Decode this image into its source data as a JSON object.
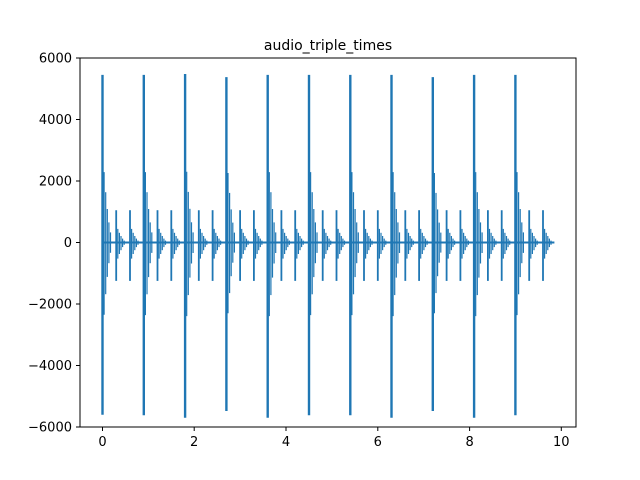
{
  "chart_data": {
    "type": "line",
    "title": "audio_triple_times",
    "xlabel": "",
    "ylabel": "",
    "xlim": [
      -0.49,
      10.32
    ],
    "ylim": [
      -6000,
      6000
    ],
    "xticks": [
      0,
      2,
      4,
      6,
      8,
      10
    ],
    "yticks": [
      -6000,
      -4000,
      -2000,
      0,
      2000,
      4000,
      6000
    ],
    "x_tick_labels": [
      "0",
      "2",
      "4",
      "6",
      "8",
      "10"
    ],
    "y_tick_labels": [
      "−6000",
      "−4000",
      "−2000",
      "0",
      "2000",
      "4000",
      "6000"
    ],
    "grid": false,
    "legend": "none",
    "color": "#1f77b4",
    "signal_end": 9.85,
    "strong_beats": {
      "x": [
        0.0,
        0.9,
        1.8,
        2.7,
        3.6,
        4.5,
        5.4,
        6.3,
        7.2,
        8.1,
        9.0
      ],
      "max": [
        5450,
        5450,
        5480,
        5380,
        5450,
        5450,
        5450,
        5450,
        5380,
        5450,
        5450
      ],
      "min": [
        -5600,
        -5620,
        -5700,
        -5480,
        -5700,
        -5620,
        -5620,
        -5700,
        -5480,
        -5700,
        -5620
      ]
    },
    "weak_beats": {
      "x": [
        0.3,
        0.6,
        1.2,
        1.5,
        2.1,
        2.4,
        3.0,
        3.3,
        3.9,
        4.2,
        4.8,
        5.1,
        5.7,
        6.0,
        6.6,
        6.9,
        7.5,
        7.8,
        8.4,
        8.7,
        9.3,
        9.6
      ],
      "max": [
        1050,
        1050,
        1050,
        1050,
        1050,
        1050,
        1050,
        1050,
        1050,
        1050,
        1050,
        1050,
        1050,
        1050,
        1050,
        1050,
        1050,
        1050,
        1050,
        1050,
        1050,
        1050
      ],
      "min": [
        -1250,
        -1250,
        -1250,
        -1250,
        -1250,
        -1250,
        -1250,
        -1250,
        -1250,
        -1250,
        -1250,
        -1250,
        -1250,
        -1250,
        -1250,
        -1250,
        -1250,
        -1250,
        -1250,
        -1250,
        -1250,
        -1250
      ]
    }
  }
}
